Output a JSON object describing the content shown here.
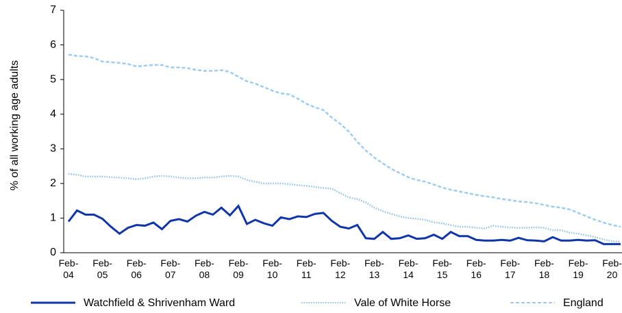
{
  "chart_data": {
    "type": "line",
    "y_label": "% of all working age adults",
    "categories": [
      "Feb-04",
      null,
      null,
      null,
      "Feb-05",
      null,
      null,
      null,
      "Feb-06",
      null,
      null,
      null,
      "Feb-07",
      null,
      null,
      null,
      "Feb-08",
      null,
      null,
      null,
      "Feb-09",
      null,
      null,
      null,
      "Feb-10",
      null,
      null,
      null,
      "Feb-11",
      null,
      null,
      null,
      "Feb-12",
      null,
      null,
      null,
      "Feb-13",
      null,
      null,
      null,
      "Feb-14",
      null,
      null,
      null,
      "Feb-15",
      null,
      null,
      null,
      "Feb-16",
      null,
      null,
      null,
      "Feb-17",
      null,
      null,
      null,
      "Feb-18",
      null,
      null,
      null,
      "Feb-19",
      null,
      null,
      null,
      "Feb-20",
      null
    ],
    "series": [
      {
        "name": "Watchfield & Shrivenham Ward",
        "color": "#0f35a8",
        "style": "solid",
        "values": [
          0.9,
          1.22,
          1.1,
          1.1,
          0.98,
          0.75,
          0.55,
          0.72,
          0.8,
          0.78,
          0.87,
          0.68,
          0.92,
          0.97,
          0.9,
          1.07,
          1.18,
          1.1,
          1.3,
          1.08,
          1.35,
          0.83,
          0.95,
          0.85,
          0.78,
          1.02,
          0.97,
          1.05,
          1.03,
          1.12,
          1.15,
          0.92,
          0.75,
          0.7,
          0.8,
          0.42,
          0.4,
          0.6,
          0.4,
          0.42,
          0.5,
          0.4,
          0.42,
          0.52,
          0.4,
          0.6,
          0.48,
          0.48,
          0.37,
          0.35,
          0.35,
          0.37,
          0.35,
          0.43,
          0.36,
          0.35,
          0.33,
          0.45,
          0.35,
          0.35,
          0.37,
          0.35,
          0.36,
          0.25,
          0.25,
          0.25
        ]
      },
      {
        "name": "Vale of White Horse",
        "color": "#8cc0ee",
        "style": "dotted",
        "values": [
          2.28,
          2.25,
          2.2,
          2.2,
          2.2,
          2.18,
          2.17,
          2.15,
          2.12,
          2.15,
          2.2,
          2.22,
          2.2,
          2.17,
          2.15,
          2.15,
          2.17,
          2.17,
          2.2,
          2.22,
          2.2,
          2.1,
          2.05,
          2.0,
          2.0,
          2.0,
          1.98,
          1.95,
          1.93,
          1.9,
          1.87,
          1.85,
          1.72,
          1.6,
          1.55,
          1.45,
          1.3,
          1.2,
          1.12,
          1.05,
          1.0,
          0.98,
          0.95,
          0.88,
          0.85,
          0.8,
          0.75,
          0.75,
          0.72,
          0.7,
          0.78,
          0.75,
          0.73,
          0.72,
          0.72,
          0.73,
          0.72,
          0.65,
          0.65,
          0.58,
          0.55,
          0.5,
          0.45,
          0.38,
          0.33,
          0.32
        ]
      },
      {
        "name": "England",
        "color": "#9ccbf5",
        "style": "dashed",
        "values": [
          5.72,
          5.68,
          5.67,
          5.62,
          5.52,
          5.5,
          5.48,
          5.45,
          5.38,
          5.4,
          5.42,
          5.42,
          5.35,
          5.35,
          5.33,
          5.28,
          5.25,
          5.25,
          5.27,
          5.22,
          5.08,
          4.95,
          4.88,
          4.78,
          4.68,
          4.6,
          4.57,
          4.45,
          4.3,
          4.2,
          4.12,
          3.9,
          3.72,
          3.5,
          3.2,
          2.95,
          2.75,
          2.58,
          2.42,
          2.3,
          2.18,
          2.1,
          2.05,
          1.97,
          1.88,
          1.82,
          1.77,
          1.72,
          1.67,
          1.63,
          1.6,
          1.55,
          1.52,
          1.48,
          1.46,
          1.43,
          1.38,
          1.33,
          1.3,
          1.25,
          1.15,
          1.05,
          0.95,
          0.87,
          0.8,
          0.75
        ]
      }
    ],
    "ylim": [
      0,
      7
    ],
    "yticks": [
      0,
      1,
      2,
      3,
      4,
      5,
      6,
      7
    ],
    "grid": false,
    "legend": "bottom"
  }
}
